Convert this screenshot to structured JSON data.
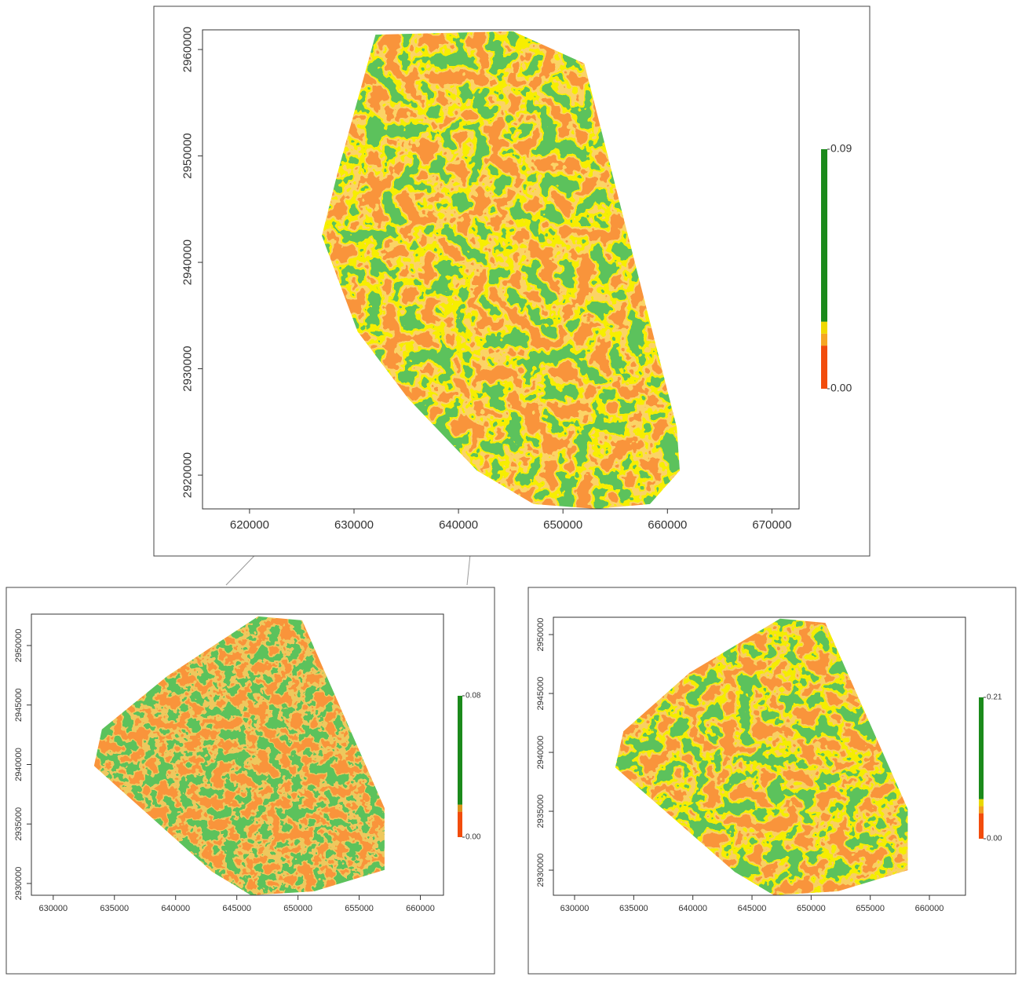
{
  "chart_data": [
    {
      "type": "raster",
      "xlim": [
        615500,
        672600
      ],
      "ylim": [
        2916830,
        2961850
      ],
      "xticks": [
        620000,
        630000,
        640000,
        650000,
        660000,
        670000
      ],
      "yticks": [
        2920000,
        2930000,
        2940000,
        2950000,
        2960000
      ],
      "clim": [
        0,
        0.09
      ],
      "colorbar_ticks": [
        {
          "value": 0,
          "label": "0.00"
        },
        0.09
      ],
      "colors": [
        "#f24c0c",
        "#f5a623",
        "#efd900",
        "#1b8a1b"
      ]
    },
    {
      "type": "raster",
      "xlim": [
        628216,
        661890
      ],
      "ylim": [
        2929010,
        2952640
      ],
      "xticks": [
        630000,
        635000,
        640000,
        645000,
        650000,
        655000,
        660000
      ],
      "yticks": [
        2930000,
        2935000,
        2940000,
        2945000,
        2950000
      ],
      "clim": [
        0,
        0.08
      ],
      "colorbar_ticks": [
        {
          "value": 0,
          "label": "0.00"
        },
        0.08
      ],
      "colors": [
        "#f24c0c",
        "#d9941c",
        "#1b8a1b"
      ]
    },
    {
      "type": "raster",
      "xlim": [
        628208,
        663050
      ],
      "ylim": [
        2927870,
        2951470
      ],
      "xticks": [
        630000,
        635000,
        640000,
        645000,
        650000,
        655000,
        660000
      ],
      "yticks": [
        2930000,
        2935000,
        2940000,
        2945000,
        2950000
      ],
      "clim": [
        0,
        0.21
      ],
      "colorbar_ticks": [
        {
          "value": 0,
          "label": "0.00"
        },
        0.21
      ],
      "colors": [
        "#f24c0c",
        "#f0a020",
        "#e8d800",
        "#1b8a1b"
      ]
    }
  ]
}
